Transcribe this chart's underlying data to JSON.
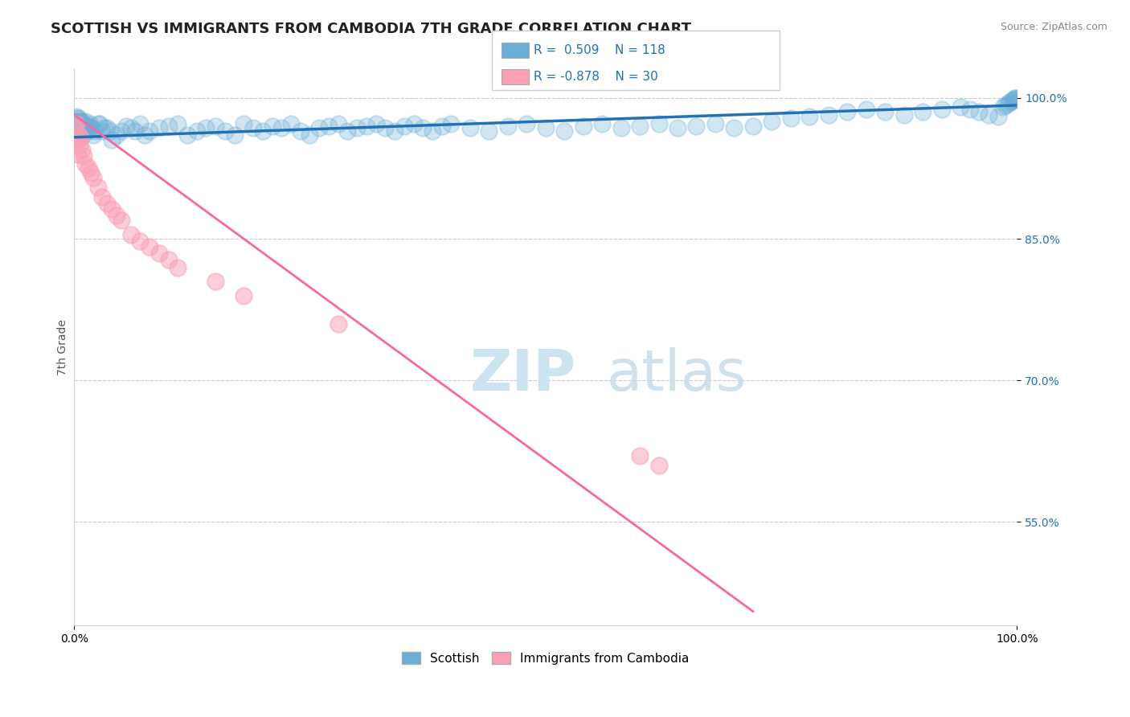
{
  "title": "SCOTTISH VS IMMIGRANTS FROM CAMBODIA 7TH GRADE CORRELATION CHART",
  "source": "Source: ZipAtlas.com",
  "ylabel": "7th Grade",
  "xlim": [
    0,
    1
  ],
  "ylim": [
    0.44,
    1.03
  ],
  "yticks": [
    0.55,
    0.7,
    0.85,
    1.0
  ],
  "ytick_labels": [
    "55.0%",
    "70.0%",
    "85.0%",
    "100.0%"
  ],
  "xtick_labels": [
    "0.0%",
    "100.0%"
  ],
  "xticks": [
    0,
    1
  ],
  "legend_R_blue": "R =  0.509",
  "legend_N_blue": "N = 118",
  "legend_R_pink": "R = -0.878",
  "legend_N_pink": "N = 30",
  "blue_color": "#6baed6",
  "pink_color": "#fa9fb5",
  "blue_line_color": "#2171b5",
  "pink_line_color": "#f768a1",
  "blue_scatter_x": [
    0.001,
    0.002,
    0.003,
    0.004,
    0.005,
    0.006,
    0.007,
    0.008,
    0.009,
    0.01,
    0.012,
    0.014,
    0.016,
    0.018,
    0.02,
    0.025,
    0.03,
    0.035,
    0.04,
    0.045,
    0.05,
    0.055,
    0.06,
    0.065,
    0.07,
    0.075,
    0.08,
    0.09,
    0.1,
    0.11,
    0.12,
    0.13,
    0.14,
    0.15,
    0.16,
    0.17,
    0.18,
    0.19,
    0.2,
    0.21,
    0.22,
    0.23,
    0.24,
    0.25,
    0.26,
    0.27,
    0.28,
    0.29,
    0.3,
    0.31,
    0.32,
    0.33,
    0.34,
    0.35,
    0.36,
    0.37,
    0.38,
    0.39,
    0.4,
    0.42,
    0.44,
    0.46,
    0.48,
    0.5,
    0.52,
    0.54,
    0.56,
    0.58,
    0.6,
    0.62,
    0.64,
    0.66,
    0.68,
    0.7,
    0.72,
    0.74,
    0.76,
    0.78,
    0.8,
    0.82,
    0.84,
    0.86,
    0.88,
    0.9,
    0.92,
    0.94,
    0.95,
    0.96,
    0.97,
    0.98,
    0.985,
    0.988,
    0.99,
    0.992,
    0.994,
    0.995,
    0.996,
    0.997,
    0.998,
    0.999,
    0.0015,
    0.0025,
    0.0035,
    0.0045,
    0.0055,
    0.0065,
    0.0075,
    0.0085,
    0.0095,
    0.011,
    0.013,
    0.015,
    0.017,
    0.019,
    0.022,
    0.027,
    0.032,
    0.038
  ],
  "blue_scatter_y": [
    0.975,
    0.98,
    0.97,
    0.965,
    0.978,
    0.972,
    0.968,
    0.975,
    0.96,
    0.97,
    0.975,
    0.965,
    0.97,
    0.968,
    0.96,
    0.972,
    0.965,
    0.968,
    0.955,
    0.96,
    0.965,
    0.97,
    0.968,
    0.965,
    0.972,
    0.96,
    0.965,
    0.968,
    0.97,
    0.972,
    0.96,
    0.965,
    0.968,
    0.97,
    0.965,
    0.96,
    0.972,
    0.968,
    0.965,
    0.97,
    0.968,
    0.972,
    0.965,
    0.96,
    0.968,
    0.97,
    0.972,
    0.965,
    0.968,
    0.97,
    0.972,
    0.968,
    0.965,
    0.97,
    0.972,
    0.968,
    0.965,
    0.97,
    0.972,
    0.968,
    0.965,
    0.97,
    0.972,
    0.968,
    0.965,
    0.97,
    0.972,
    0.968,
    0.97,
    0.972,
    0.968,
    0.97,
    0.972,
    0.968,
    0.97,
    0.975,
    0.978,
    0.98,
    0.982,
    0.985,
    0.988,
    0.985,
    0.982,
    0.985,
    0.988,
    0.99,
    0.988,
    0.985,
    0.982,
    0.98,
    0.99,
    0.992,
    0.994,
    0.995,
    0.996,
    0.997,
    0.998,
    0.999,
    1.0,
    1.0,
    0.975,
    0.978,
    0.97,
    0.972,
    0.968,
    0.975,
    0.972,
    0.968,
    0.965,
    0.97,
    0.968,
    0.97,
    0.972,
    0.968,
    0.965,
    0.972,
    0.968,
    0.965
  ],
  "pink_scatter_x": [
    0.001,
    0.002,
    0.003,
    0.004,
    0.005,
    0.006,
    0.007,
    0.008,
    0.01,
    0.012,
    0.015,
    0.018,
    0.02,
    0.025,
    0.03,
    0.035,
    0.04,
    0.045,
    0.05,
    0.06,
    0.07,
    0.08,
    0.09,
    0.1,
    0.11,
    0.15,
    0.18,
    0.28,
    0.6,
    0.62
  ],
  "pink_scatter_y": [
    0.968,
    0.972,
    0.955,
    0.94,
    0.96,
    0.95,
    0.958,
    0.945,
    0.938,
    0.93,
    0.925,
    0.92,
    0.915,
    0.905,
    0.895,
    0.888,
    0.882,
    0.875,
    0.87,
    0.855,
    0.848,
    0.842,
    0.835,
    0.828,
    0.82,
    0.805,
    0.79,
    0.76,
    0.62,
    0.61
  ],
  "blue_trend_x": [
    0.0,
    1.0
  ],
  "blue_trend_y": [
    0.958,
    0.992
  ],
  "pink_trend_x": [
    0.0,
    0.72
  ],
  "pink_trend_y": [
    0.982,
    0.455
  ],
  "grid_color": "#cccccc",
  "bg_color": "#ffffff",
  "title_fontsize": 13,
  "label_fontsize": 10,
  "tick_fontsize": 10,
  "watermark_color": "#cce4f0",
  "watermark_fontsize": 52
}
